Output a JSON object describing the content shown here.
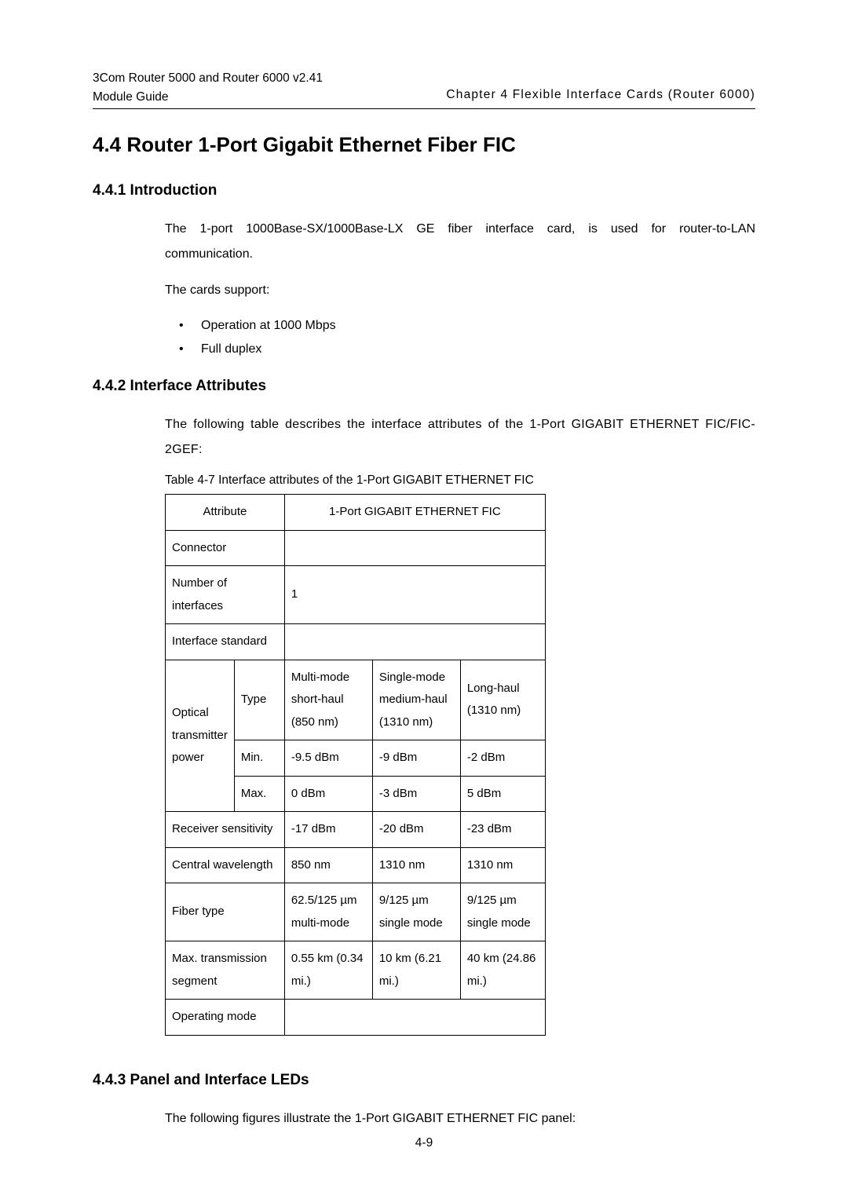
{
  "header": {
    "product_line1": "3Com Router 5000 and Router 6000 v2.41",
    "product_line2": "Module Guide",
    "chapter": "Chapter 4  Flexible Interface Cards (Router 6000)"
  },
  "sections": {
    "s44": {
      "title": "4.4  Router 1-Port Gigabit Ethernet Fiber FIC"
    },
    "s441": {
      "title": "4.4.1  Introduction",
      "para1": "The 1-port 1000Base-SX/1000Base-LX GE fiber interface card, is used for router-to-LAN communication.",
      "para2": "The cards support:",
      "bullets": {
        "b1": "Operation at 1000 Mbps",
        "b2": "Full duplex"
      }
    },
    "s442": {
      "title": "4.4.2  Interface Attributes",
      "para1": "The following table describes the interface attributes of the 1-Port GIGABIT ETHERNET FIC/FIC-2GEF:",
      "table_caption": "Table 4-7 Interface attributes of the 1-Port GIGABIT ETHERNET FIC"
    },
    "s443": {
      "title": "4.4.3  Panel and Interface LEDs",
      "para1": "The following figures illustrate the 1-Port GIGABIT ETHERNET FIC panel:"
    }
  },
  "table": {
    "header": {
      "attribute": "Attribute",
      "card": "1-Port GIGABIT ETHERNET FIC"
    },
    "rows": {
      "connector": {
        "label": "Connector",
        "value": ""
      },
      "num_interfaces": {
        "label": "Number of interfaces",
        "value": "1"
      },
      "interface_standard": {
        "label": "Interface standard",
        "value": ""
      },
      "optical_transmitter_power": {
        "label": "Optical transmitter power",
        "type_label": "Type",
        "min_label": "Min.",
        "max_label": "Max.",
        "type_cells": {
          "c1": "Multi-mode short-haul (850 nm)",
          "c2": "Single-mode medium-haul (1310 nm)",
          "c3": "Long-haul (1310 nm)"
        },
        "min_cells": {
          "c1": "-9.5 dBm",
          "c2": "-9 dBm",
          "c3": "-2 dBm"
        },
        "max_cells": {
          "c1": "0 dBm",
          "c2": "-3 dBm",
          "c3": "5 dBm"
        }
      },
      "receiver_sensitivity": {
        "label": "Receiver sensitivity",
        "cells": {
          "c1": "-17 dBm",
          "c2": "-20 dBm",
          "c3": "-23 dBm"
        }
      },
      "central_wavelength": {
        "label": "Central wavelength",
        "cells": {
          "c1": "850 nm",
          "c2": "1310 nm",
          "c3": "1310 nm"
        }
      },
      "fiber_type": {
        "label": "Fiber type",
        "cells": {
          "c1": "62.5/125 µm multi-mode",
          "c2": "9/125 µm single mode",
          "c3": "9/125 µm single mode"
        }
      },
      "max_transmission_segment": {
        "label": "Max. transmission segment",
        "cells": {
          "c1": "0.55 km (0.34 mi.)",
          "c2": "10 km (6.21 mi.)",
          "c3": "40 km (24.86 mi.)"
        }
      },
      "operating_mode": {
        "label": "Operating mode",
        "value": ""
      }
    }
  },
  "footer": {
    "page": "4-9"
  }
}
